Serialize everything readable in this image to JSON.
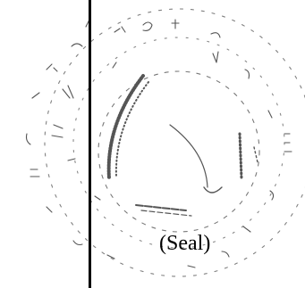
{
  "document": {
    "seal_caption": "(Seal)",
    "seal_image": {
      "icon": "embossed-seal-icon",
      "color": "#555555"
    },
    "rule_color": "#000000"
  }
}
